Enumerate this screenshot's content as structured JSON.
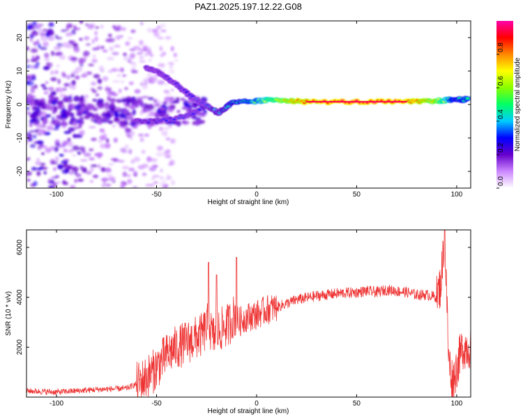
{
  "title": "PAZ1.2025.197.12.22.G08",
  "chart_data": [
    {
      "type": "heatmap",
      "xlabel": "Height of straight line (km)",
      "ylabel": "Frequency (Hz)",
      "xlim": [
        -115,
        107
      ],
      "ylim": [
        -25,
        25
      ],
      "x_ticks": [
        -100,
        -50,
        0,
        50,
        100
      ],
      "y_ticks": [
        -20,
        -10,
        0,
        10,
        20
      ],
      "colorbar": {
        "label": "Normalized spectral amplitude",
        "range": [
          0,
          1
        ],
        "ticks": [
          0.0,
          0.2,
          0.4,
          0.6,
          0.8
        ],
        "colors": [
          "#ffffff",
          "#cc88ff",
          "#6600cc",
          "#0000ff",
          "#00ccff",
          "#00ff66",
          "#88ff00",
          "#ffff00",
          "#ff8800",
          "#ff0000",
          "#ff00aa"
        ]
      },
      "ridge": [
        {
          "x": -55,
          "y": 11,
          "amp": 0.2
        },
        {
          "x": -47,
          "y": 9,
          "amp": 0.22
        },
        {
          "x": -40,
          "y": 6,
          "amp": 0.28
        },
        {
          "x": -32,
          "y": 2,
          "amp": 0.3
        },
        {
          "x": -26,
          "y": 0,
          "amp": 0.35
        },
        {
          "x": -19,
          "y": -2.5,
          "amp": 0.4
        },
        {
          "x": -12,
          "y": 0.5,
          "amp": 0.45
        },
        {
          "x": 0,
          "y": 1,
          "amp": 0.55
        },
        {
          "x": 10,
          "y": 1.5,
          "amp": 0.7
        },
        {
          "x": 25,
          "y": 0.8,
          "amp": 0.88
        },
        {
          "x": 50,
          "y": 0.8,
          "amp": 0.92
        },
        {
          "x": 75,
          "y": 0.8,
          "amp": 0.9
        },
        {
          "x": 90,
          "y": 1,
          "amp": 0.75
        },
        {
          "x": 98,
          "y": 1.5,
          "amp": 0.5
        },
        {
          "x": 106,
          "y": 1.5,
          "amp": 0.5
        }
      ],
      "lower_branch": [
        {
          "x": -60,
          "y": -5,
          "amp": 0.2
        },
        {
          "x": -50,
          "y": -5,
          "amp": 0.25
        },
        {
          "x": -40,
          "y": -4,
          "amp": 0.3
        },
        {
          "x": -33,
          "y": -3,
          "amp": 0.3
        },
        {
          "x": -28,
          "y": -1,
          "amp": 0.32
        }
      ]
    },
    {
      "type": "line",
      "xlabel": "Height of straight line (km)",
      "ylabel": "SNR (10 * v/v)",
      "xlim": [
        -115,
        107
      ],
      "ylim": [
        0,
        6700
      ],
      "x_ticks": [
        -100,
        -50,
        0,
        50,
        100
      ],
      "y_ticks": [
        2000,
        4000,
        6000
      ],
      "color": "#ee3333",
      "series": [
        {
          "x": [
            -115,
            -100,
            -80,
            -65,
            -58,
            -52,
            -47,
            -42,
            -37,
            -32,
            -27,
            -24,
            -22,
            -18,
            -14,
            -11,
            -9,
            -5,
            0,
            5,
            10,
            15,
            20,
            30,
            40,
            50,
            55,
            60,
            65,
            70,
            75,
            80,
            85,
            90,
            92,
            94,
            95,
            96,
            98,
            100,
            103,
            107
          ],
          "y": [
            250,
            200,
            300,
            350,
            600,
            1000,
            1500,
            1900,
            2100,
            2300,
            2500,
            3000,
            2400,
            2700,
            2900,
            3300,
            3000,
            3200,
            3300,
            3500,
            3600,
            3750,
            3900,
            4050,
            4150,
            4200,
            4250,
            4200,
            4300,
            4250,
            4200,
            4100,
            4100,
            4000,
            4500,
            6500,
            4000,
            1500,
            600,
            1200,
            2000,
            2000
          ]
        }
      ],
      "spikes": [
        {
          "x": -24,
          "y": 5400
        },
        {
          "x": -20,
          "y": 4900
        },
        {
          "x": -10,
          "y": 5600
        },
        {
          "x": 94,
          "y": 6700
        }
      ]
    }
  ]
}
